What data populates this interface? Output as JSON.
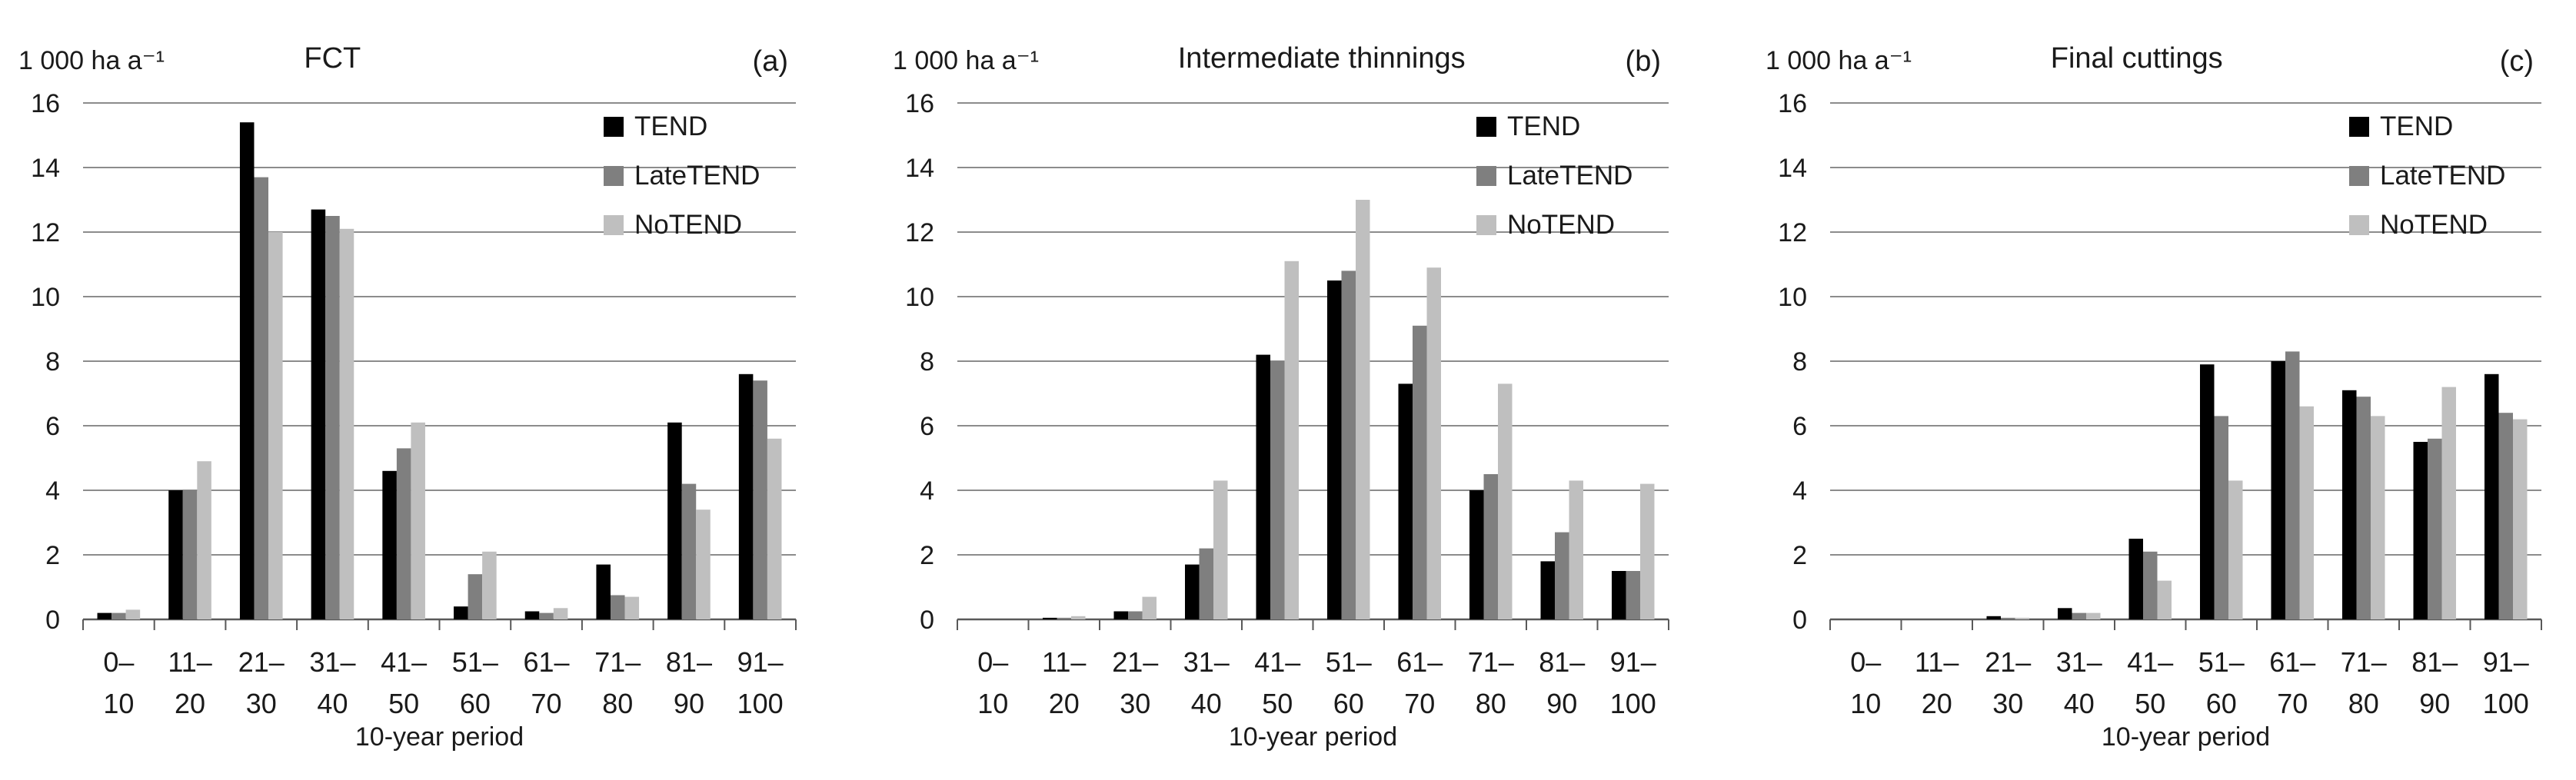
{
  "colors": {
    "TEND": "#000000",
    "LateTEND": "#7f7f7f",
    "NoTEND": "#bfbfbf",
    "grid": "#8c8c8c",
    "axis": "#595959"
  },
  "chart_data": [
    {
      "type": "bar",
      "title": "FCT",
      "panel_label": "(a)",
      "ylabel": "1 000 ha a⁻¹",
      "xlabel": "10-year period",
      "ylim": [
        0,
        16
      ],
      "yticks": [
        "0",
        "2",
        "4",
        "6",
        "8",
        "10",
        "12",
        "14",
        "16"
      ],
      "grid": true,
      "legend_position": "top-right",
      "categories": [
        [
          "0–",
          "10"
        ],
        [
          "11–",
          "20"
        ],
        [
          "21–",
          "30"
        ],
        [
          "31–",
          "40"
        ],
        [
          "41–",
          "50"
        ],
        [
          "51–",
          "60"
        ],
        [
          "61–",
          "70"
        ],
        [
          "71–",
          "80"
        ],
        [
          "81–",
          "90"
        ],
        [
          "91–",
          "100"
        ]
      ],
      "series": [
        {
          "name": "TEND",
          "color": "#000000",
          "values": [
            0.2,
            4.0,
            15.4,
            12.7,
            4.6,
            0.4,
            0.25,
            1.7,
            6.1,
            7.6
          ]
        },
        {
          "name": "LateTEND",
          "color": "#7f7f7f",
          "values": [
            0.2,
            4.0,
            13.7,
            12.5,
            5.3,
            1.4,
            0.2,
            0.75,
            4.2,
            7.4
          ]
        },
        {
          "name": "NoTEND",
          "color": "#bfbfbf",
          "values": [
            0.3,
            4.9,
            12.0,
            12.1,
            6.1,
            2.1,
            0.35,
            0.7,
            3.4,
            5.6
          ]
        }
      ]
    },
    {
      "type": "bar",
      "title": "Intermediate thinnings",
      "panel_label": "(b)",
      "ylabel": "1 000 ha a⁻¹",
      "xlabel": "10-year period",
      "ylim": [
        0,
        16
      ],
      "yticks": [
        "0",
        "2",
        "4",
        "6",
        "8",
        "10",
        "12",
        "14",
        "16"
      ],
      "grid": true,
      "legend_position": "top-right",
      "categories": [
        [
          "0–",
          "10"
        ],
        [
          "11–",
          "20"
        ],
        [
          "21–",
          "30"
        ],
        [
          "31–",
          "40"
        ],
        [
          "41–",
          "50"
        ],
        [
          "51–",
          "60"
        ],
        [
          "61–",
          "70"
        ],
        [
          "71–",
          "80"
        ],
        [
          "81–",
          "90"
        ],
        [
          "91–",
          "100"
        ]
      ],
      "series": [
        {
          "name": "TEND",
          "color": "#000000",
          "values": [
            0.0,
            0.05,
            0.25,
            1.7,
            8.2,
            10.5,
            7.3,
            4.0,
            1.8,
            1.5
          ]
        },
        {
          "name": "LateTEND",
          "color": "#7f7f7f",
          "values": [
            0.0,
            0.05,
            0.25,
            2.2,
            8.0,
            10.8,
            9.1,
            4.5,
            2.7,
            1.5
          ]
        },
        {
          "name": "NoTEND",
          "color": "#bfbfbf",
          "values": [
            0.0,
            0.1,
            0.7,
            4.3,
            11.1,
            13.0,
            10.9,
            7.3,
            4.3,
            4.2
          ]
        }
      ]
    },
    {
      "type": "bar",
      "title": "Final cuttings",
      "panel_label": "(c)",
      "ylabel": "1 000 ha a⁻¹",
      "xlabel": "10-year period",
      "ylim": [
        0,
        16
      ],
      "yticks": [
        "0",
        "2",
        "4",
        "6",
        "8",
        "10",
        "12",
        "14",
        "16"
      ],
      "grid": true,
      "legend_position": "top-right",
      "categories": [
        [
          "0–",
          "10"
        ],
        [
          "11–",
          "20"
        ],
        [
          "21–",
          "30"
        ],
        [
          "31–",
          "40"
        ],
        [
          "41–",
          "50"
        ],
        [
          "51–",
          "60"
        ],
        [
          "61–",
          "70"
        ],
        [
          "71–",
          "80"
        ],
        [
          "81–",
          "90"
        ],
        [
          "91–",
          "100"
        ]
      ],
      "series": [
        {
          "name": "TEND",
          "color": "#000000",
          "values": [
            0.0,
            0.0,
            0.1,
            0.35,
            2.5,
            7.9,
            8.0,
            7.1,
            5.5,
            7.6
          ]
        },
        {
          "name": "LateTEND",
          "color": "#7f7f7f",
          "values": [
            0.0,
            0.0,
            0.05,
            0.2,
            2.1,
            6.3,
            8.3,
            6.9,
            5.6,
            6.4
          ]
        },
        {
          "name": "NoTEND",
          "color": "#bfbfbf",
          "values": [
            0.0,
            0.0,
            0.05,
            0.2,
            1.2,
            4.3,
            6.6,
            6.3,
            7.2,
            6.2
          ]
        }
      ]
    }
  ]
}
